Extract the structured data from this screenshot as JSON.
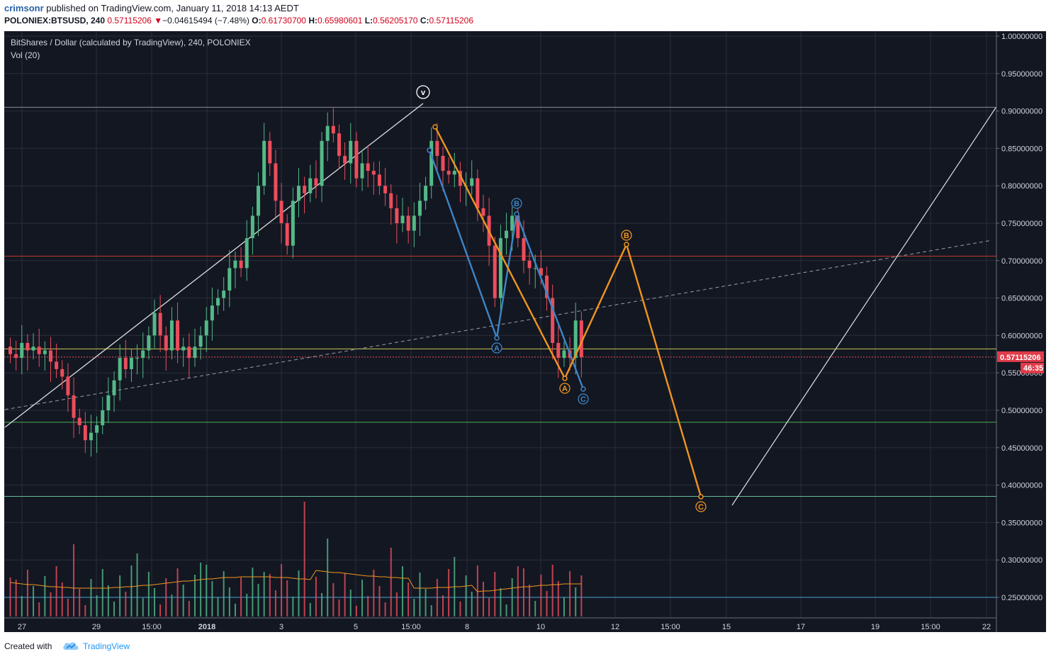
{
  "header": {
    "user": "crimsonr",
    "published_text": " published on TradingView.com, January 11, 2018 14:13 AEDT",
    "symbol": "POLONIEX:BTSUSD, 240",
    "last": "0.57115206",
    "change_arrow": "▼",
    "change": "−0.04615494 (−7.48%)",
    "o_label": "O:",
    "o_value": "0.61730700",
    "h_label": "H:",
    "h_value": "0.65980601",
    "l_label": "L:",
    "l_value": "0.56205170",
    "c_label": "C:",
    "c_value": "0.57115206"
  },
  "legend": {
    "title": "BitShares / Dollar (calculated by TradingView), 240, POLONIEX",
    "volume": "Vol (20)"
  },
  "footer": {
    "created": "Created with",
    "brand": "TradingView"
  },
  "colors": {
    "bg": "#131722",
    "grid": "#2a2e39",
    "up": "#53b987",
    "down": "#eb4d5c",
    "blue": "#3d85c6",
    "orange": "#f0951f",
    "axis_text": "#d1d4dc"
  },
  "chart_data": {
    "type": "candlestick",
    "interval": "240",
    "ylim": [
      0.23,
      1.01
    ],
    "y_ticks": [
      "1.00000000",
      "0.95000000",
      "0.90000000",
      "0.85000000",
      "0.80000000",
      "0.75000000",
      "0.70000000",
      "0.65000000",
      "0.60000000",
      "0.55000000",
      "0.50000000",
      "0.45000000",
      "0.40000000",
      "0.35000000",
      "0.30000000",
      "0.25000000"
    ],
    "x_ticks": [
      "27",
      "29",
      "15:00",
      "2018",
      "3",
      "5",
      "15:00",
      "8",
      "10",
      "12",
      "15:00",
      "15",
      "17",
      "19",
      "15:00",
      "22"
    ],
    "last_price_label": "0.57115206",
    "countdown_label": "46:35",
    "close_series": [
      0.575,
      0.57,
      0.59,
      0.58,
      0.585,
      0.575,
      0.58,
      0.565,
      0.555,
      0.545,
      0.52,
      0.49,
      0.48,
      0.46,
      0.47,
      0.48,
      0.5,
      0.52,
      0.54,
      0.57,
      0.555,
      0.57,
      0.57,
      0.58,
      0.6,
      0.63,
      0.6,
      0.58,
      0.62,
      0.58,
      0.585,
      0.57,
      0.585,
      0.6,
      0.62,
      0.64,
      0.65,
      0.66,
      0.69,
      0.7,
      0.69,
      0.73,
      0.76,
      0.8,
      0.86,
      0.83,
      0.78,
      0.75,
      0.72,
      0.78,
      0.8,
      0.79,
      0.81,
      0.8,
      0.86,
      0.88,
      0.87,
      0.84,
      0.83,
      0.86,
      0.81,
      0.83,
      0.82,
      0.815,
      0.8,
      0.79,
      0.77,
      0.75,
      0.76,
      0.74,
      0.76,
      0.78,
      0.8,
      0.86,
      0.84,
      0.82,
      0.815,
      0.82,
      0.8,
      0.8,
      0.81,
      0.77,
      0.76,
      0.72,
      0.65,
      0.73,
      0.74,
      0.76,
      0.73,
      0.7,
      0.69,
      0.69,
      0.68,
      0.65,
      0.59,
      0.57,
      0.58,
      0.57,
      0.62,
      0.571
    ],
    "volume_ma_label": "Vol (20)",
    "horizontal_levels": [
      0.905,
      0.706,
      0.582,
      0.484,
      0.385,
      0.25
    ],
    "wave_labels": [
      {
        "label": "v",
        "color": "white"
      },
      {
        "label": "A",
        "color": "blue"
      },
      {
        "label": "B",
        "color": "blue"
      },
      {
        "label": "C",
        "color": "blue"
      },
      {
        "label": "A",
        "color": "orange"
      },
      {
        "label": "B",
        "color": "orange"
      },
      {
        "label": "C",
        "color": "orange"
      }
    ],
    "orange_path": [
      0.878,
      0.54,
      0.72,
      0.382
    ],
    "blue_path": [
      0.845,
      0.597,
      0.763,
      0.525
    ]
  }
}
